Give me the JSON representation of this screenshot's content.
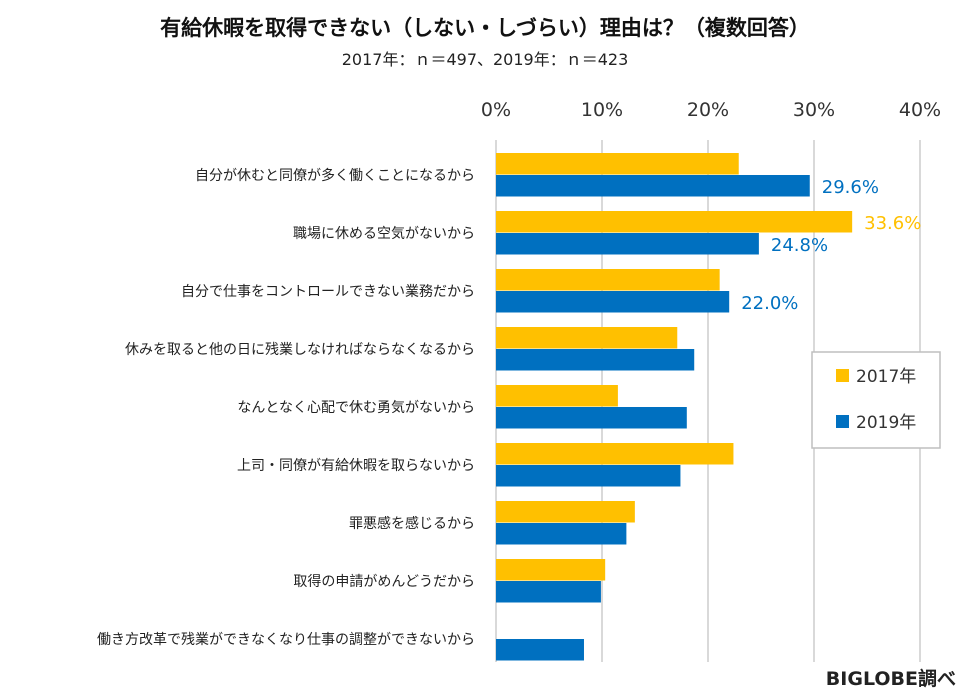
{
  "title": "有給休暇を取得できない（しない・しづらい）理由は？（複数回答）",
  "subtitle": "2017年：ｎ＝497、2019年：ｎ＝423",
  "source": "BIGLOBE調べ",
  "chart_data": {
    "type": "bar",
    "orientation": "horizontal",
    "categories": [
      "自分が休むと同僚が多く働くことになるから",
      "職場に休める空気がないから",
      "自分で仕事をコントロールできない業務だから",
      "休みを取ると他の日に残業しなければならなくなるから",
      "なんとなく心配で休む勇気がないから",
      "上司・同僚が有給休暇を取らないから",
      "罪悪感を感じるから",
      "取得の申請がめんどうだから",
      "働き方改革で残業ができなくなり仕事の調整ができないから"
    ],
    "series": [
      {
        "name": "2017年",
        "color": "#FFC000",
        "values": [
          22.9,
          33.6,
          21.1,
          17.1,
          11.5,
          22.4,
          13.1,
          10.3,
          null
        ],
        "labels": [
          "",
          "33.6%",
          "",
          "",
          "",
          "",
          "",
          "",
          ""
        ]
      },
      {
        "name": "2019年",
        "color": "#0070C0",
        "values": [
          29.6,
          24.8,
          22.0,
          18.7,
          18.0,
          17.4,
          12.3,
          9.9,
          8.3
        ],
        "labels": [
          "29.6%",
          "24.8%",
          "22.0%",
          "",
          "",
          "",
          "",
          "",
          ""
        ]
      }
    ],
    "xlim": [
      0,
      40
    ],
    "xticks": [
      "0%",
      "10%",
      "20%",
      "30%",
      "40%"
    ],
    "grid": true,
    "legend": "right"
  }
}
